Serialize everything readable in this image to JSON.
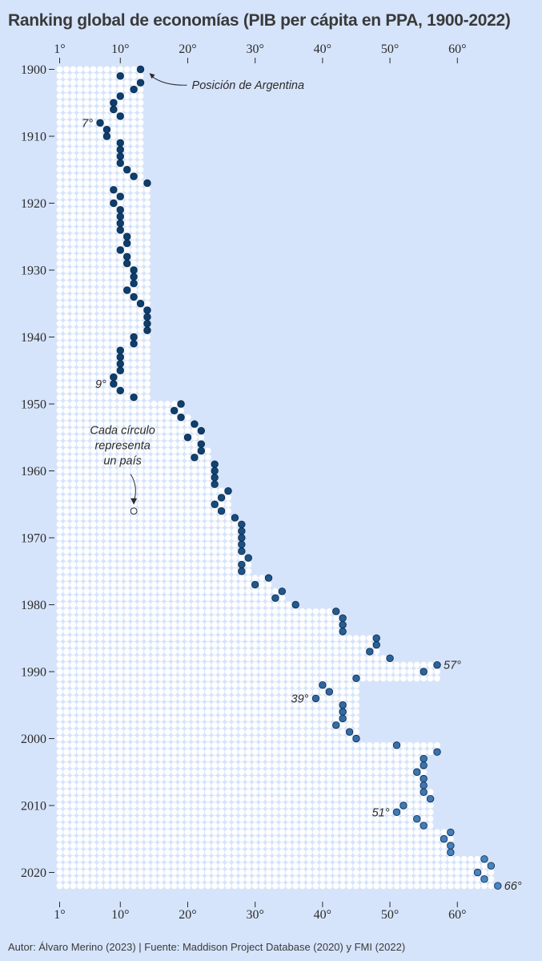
{
  "chart_data": {
    "type": "scatter",
    "title": "Ranking global de economías (PIB per cápita en PPA, 1900-2022)",
    "xlabel": "",
    "ylabel": "",
    "x_axis_position": "top-and-bottom",
    "xlim": [
      1,
      66
    ],
    "ylim": [
      1900,
      2022
    ],
    "x_ticks": [
      "1°",
      "10°",
      "20°",
      "30°",
      "40°",
      "50°",
      "60°"
    ],
    "x_tick_values": [
      1,
      10,
      20,
      30,
      40,
      50,
      60
    ],
    "y_ticks": [
      "1900",
      "1910",
      "1920",
      "1930",
      "1940",
      "1950",
      "1960",
      "1970",
      "1980",
      "1990",
      "2000",
      "2010",
      "2020"
    ],
    "y_tick_values": [
      1900,
      1910,
      1920,
      1930,
      1940,
      1950,
      1960,
      1970,
      1980,
      1990,
      2000,
      2010,
      2020
    ],
    "grid": false,
    "colors": {
      "background": "#d6e4fb",
      "country_circle": "#ffffff",
      "argentina_early": "#0d3f6e",
      "argentina_late": "#4a86c5",
      "text": "#2b2b2b"
    },
    "series": [
      {
        "name": "Posición de Argentina",
        "years": [
          1900,
          1901,
          1902,
          1903,
          1904,
          1905,
          1906,
          1907,
          1908,
          1909,
          1910,
          1911,
          1912,
          1913,
          1914,
          1915,
          1916,
          1917,
          1918,
          1919,
          1920,
          1921,
          1922,
          1923,
          1924,
          1925,
          1926,
          1927,
          1928,
          1929,
          1930,
          1931,
          1932,
          1933,
          1934,
          1935,
          1936,
          1937,
          1938,
          1939,
          1940,
          1941,
          1942,
          1943,
          1944,
          1945,
          1946,
          1947,
          1948,
          1949,
          1950,
          1951,
          1952,
          1953,
          1954,
          1955,
          1956,
          1957,
          1958,
          1959,
          1960,
          1961,
          1962,
          1963,
          1964,
          1965,
          1966,
          1967,
          1968,
          1969,
          1970,
          1971,
          1972,
          1973,
          1974,
          1975,
          1976,
          1977,
          1978,
          1979,
          1980,
          1981,
          1982,
          1983,
          1984,
          1985,
          1986,
          1987,
          1988,
          1989,
          1990,
          1991,
          1992,
          1993,
          1994,
          1995,
          1996,
          1997,
          1998,
          1999,
          2000,
          2001,
          2002,
          2003,
          2004,
          2005,
          2006,
          2007,
          2008,
          2009,
          2010,
          2011,
          2012,
          2013,
          2014,
          2015,
          2016,
          2017,
          2018,
          2019,
          2020,
          2021,
          2022
        ],
        "rank": [
          13,
          10,
          13,
          12,
          10,
          9,
          9,
          10,
          7,
          8,
          8,
          10,
          10,
          10,
          10,
          11,
          12,
          14,
          9,
          10,
          9,
          10,
          10,
          10,
          10,
          11,
          11,
          10,
          11,
          11,
          12,
          12,
          12,
          11,
          12,
          13,
          14,
          14,
          14,
          14,
          12,
          12,
          10,
          10,
          10,
          10,
          9,
          9,
          10,
          12,
          19,
          18,
          19,
          21,
          22,
          20,
          22,
          22,
          21,
          24,
          24,
          24,
          24,
          26,
          25,
          24,
          25,
          27,
          28,
          28,
          28,
          28,
          28,
          29,
          28,
          28,
          32,
          30,
          34,
          33,
          36,
          42,
          43,
          43,
          43,
          48,
          48,
          47,
          50,
          57,
          55,
          45,
          40,
          41,
          39,
          43,
          43,
          43,
          42,
          44,
          45,
          51,
          57,
          55,
          55,
          54,
          55,
          55,
          55,
          56,
          52,
          51,
          54,
          55,
          59,
          58,
          59,
          59,
          64,
          65,
          63,
          64,
          66
        ]
      }
    ],
    "country_counts": [
      13,
      13,
      13,
      13,
      13,
      13,
      13,
      13,
      13,
      13,
      13,
      13,
      13,
      13,
      13,
      13,
      13,
      14,
      14,
      14,
      14,
      14,
      14,
      14,
      14,
      14,
      14,
      14,
      14,
      14,
      14,
      14,
      14,
      14,
      14,
      14,
      14,
      14,
      14,
      14,
      14,
      14,
      14,
      14,
      14,
      14,
      14,
      14,
      14,
      14,
      19,
      19,
      20,
      21,
      22,
      22,
      22,
      23,
      23,
      24,
      24,
      24,
      24,
      26,
      26,
      26,
      26,
      27,
      28,
      28,
      28,
      28,
      28,
      29,
      29,
      29,
      32,
      32,
      34,
      34,
      36,
      42,
      43,
      43,
      43,
      48,
      48,
      48,
      50,
      57,
      57,
      57,
      45,
      45,
      45,
      45,
      45,
      45,
      45,
      45,
      45,
      57,
      57,
      55,
      55,
      55,
      55,
      55,
      56,
      56,
      56,
      56,
      56,
      56,
      59,
      59,
      59,
      59,
      64,
      65,
      65,
      65,
      66
    ],
    "annotations": [
      {
        "text": "Posición de Argentina",
        "year": 1902,
        "rank": 13,
        "arrow": true
      },
      {
        "text": "7°",
        "year": 1908,
        "rank": 7
      },
      {
        "text": "9°",
        "year": 1947,
        "rank": 9
      },
      {
        "text": "57°",
        "year": 1989,
        "rank": 57
      },
      {
        "text": "39°",
        "year": 1994,
        "rank": 39
      },
      {
        "text": "51°",
        "year": 2011,
        "rank": 51
      },
      {
        "text": "66°",
        "year": 2022,
        "rank": 66
      }
    ],
    "legend_note": {
      "lines": [
        "Cada círculo",
        "representa",
        "un país"
      ],
      "year": 1966,
      "rank": 12
    }
  },
  "source_note": "Autor: Álvaro Merino (2023) | Fuente: Maddison Project Database (2020) y FMI (2022)"
}
